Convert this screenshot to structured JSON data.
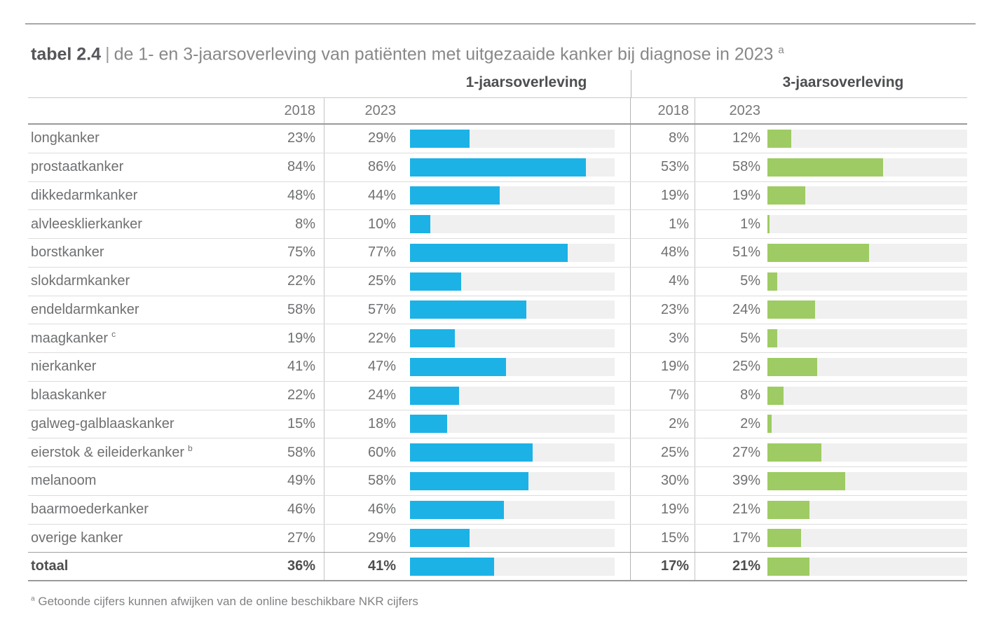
{
  "title": {
    "prefix": "tabel 2.4",
    "separator": "|",
    "text": "de 1- en 3-jaarsoverleving van patiënten met uitgezaaide kanker bij diagnose in 2023",
    "superscript": "a"
  },
  "sections": {
    "one_year": "1-jaarsoverleving",
    "three_year": "3-jaarsoverleving"
  },
  "columns": {
    "one_year_2018": "2018",
    "one_year_2023": "2023",
    "three_year_2018": "2018",
    "three_year_2023": "2023"
  },
  "colors": {
    "blue": "#1cb2e6",
    "green": "#9ecb63",
    "track": "#f0f0f0"
  },
  "footnote": {
    "superscript": "a",
    "text": "Getoonde cijfers kunnen afwijken van de online beschikbare NKR cijfers"
  },
  "table": {
    "rows": [
      {
        "label": "longkanker",
        "sup": "",
        "y1_2018": "23%",
        "y1_2023": "29%",
        "bar1": 29,
        "y3_2018": "8%",
        "y3_2023": "12%",
        "bar2": 12,
        "bold": false
      },
      {
        "label": "prostaatkanker",
        "sup": "",
        "y1_2018": "84%",
        "y1_2023": "86%",
        "bar1": 86,
        "y3_2018": "53%",
        "y3_2023": "58%",
        "bar2": 58,
        "bold": false
      },
      {
        "label": "dikkedarmkanker",
        "sup": "",
        "y1_2018": "48%",
        "y1_2023": "44%",
        "bar1": 44,
        "y3_2018": "19%",
        "y3_2023": "19%",
        "bar2": 19,
        "bold": false
      },
      {
        "label": "alvleesklierkanker",
        "sup": "",
        "y1_2018": "8%",
        "y1_2023": "10%",
        "bar1": 10,
        "y3_2018": "1%",
        "y3_2023": "1%",
        "bar2": 1,
        "bold": false
      },
      {
        "label": "borstkanker",
        "sup": "",
        "y1_2018": "75%",
        "y1_2023": "77%",
        "bar1": 77,
        "y3_2018": "48%",
        "y3_2023": "51%",
        "bar2": 51,
        "bold": false
      },
      {
        "label": "slokdarmkanker",
        "sup": "",
        "y1_2018": "22%",
        "y1_2023": "25%",
        "bar1": 25,
        "y3_2018": "4%",
        "y3_2023": "5%",
        "bar2": 5,
        "bold": false
      },
      {
        "label": "endeldarmkanker",
        "sup": "",
        "y1_2018": "58%",
        "y1_2023": "57%",
        "bar1": 57,
        "y3_2018": "23%",
        "y3_2023": "24%",
        "bar2": 24,
        "bold": false
      },
      {
        "label": "maagkanker",
        "sup": "c",
        "y1_2018": "19%",
        "y1_2023": "22%",
        "bar1": 22,
        "y3_2018": "3%",
        "y3_2023": "5%",
        "bar2": 5,
        "bold": false
      },
      {
        "label": "nierkanker",
        "sup": "",
        "y1_2018": "41%",
        "y1_2023": "47%",
        "bar1": 47,
        "y3_2018": "19%",
        "y3_2023": "25%",
        "bar2": 25,
        "bold": false
      },
      {
        "label": "blaaskanker",
        "sup": "",
        "y1_2018": "22%",
        "y1_2023": "24%",
        "bar1": 24,
        "y3_2018": "7%",
        "y3_2023": "8%",
        "bar2": 8,
        "bold": false
      },
      {
        "label": "galweg-galblaaskanker",
        "sup": "",
        "y1_2018": "15%",
        "y1_2023": "18%",
        "bar1": 18,
        "y3_2018": "2%",
        "y3_2023": "2%",
        "bar2": 2,
        "bold": false
      },
      {
        "label": "eierstok & eileiderkanker",
        "sup": "b",
        "y1_2018": "58%",
        "y1_2023": "60%",
        "bar1": 60,
        "y3_2018": "25%",
        "y3_2023": "27%",
        "bar2": 27,
        "bold": false
      },
      {
        "label": "melanoom",
        "sup": "",
        "y1_2018": "49%",
        "y1_2023": "58%",
        "bar1": 58,
        "y3_2018": "30%",
        "y3_2023": "39%",
        "bar2": 39,
        "bold": false
      },
      {
        "label": "baarmoederkanker",
        "sup": "",
        "y1_2018": "46%",
        "y1_2023": "46%",
        "bar1": 46,
        "y3_2018": "19%",
        "y3_2023": "21%",
        "bar2": 21,
        "bold": false
      },
      {
        "label": "overige kanker",
        "sup": "",
        "y1_2018": "27%",
        "y1_2023": "29%",
        "bar1": 29,
        "y3_2018": "15%",
        "y3_2023": "17%",
        "bar2": 17,
        "bold": false
      },
      {
        "label": "totaal",
        "sup": "",
        "y1_2018": "36%",
        "y1_2023": "41%",
        "bar1": 41,
        "y3_2018": "17%",
        "y3_2023": "21%",
        "bar2": 21,
        "bold": true
      }
    ]
  },
  "chart_data": {
    "type": "bar",
    "title": "tabel 2.4 | de 1- en 3-jaarsoverleving van patiënten met uitgezaaide kanker bij diagnose in 2023 a",
    "orientation": "horizontal",
    "groups": [
      "1-jaarsoverleving",
      "3-jaarsoverleving"
    ],
    "categories": [
      "longkanker",
      "prostaatkanker",
      "dikkedarmkanker",
      "alvleesklierkanker",
      "borstkanker",
      "slokdarmkanker",
      "endeldarmkanker",
      "maagkanker c",
      "nierkanker",
      "blaaskanker",
      "galweg-galblaaskanker",
      "eierstok & eileiderkanker b",
      "melanoom",
      "baarmoederkanker",
      "overige kanker",
      "totaal"
    ],
    "series": [
      {
        "name": "1-jaarsoverleving 2018",
        "unit": "%",
        "values": [
          23,
          84,
          48,
          8,
          75,
          22,
          58,
          19,
          41,
          22,
          15,
          58,
          49,
          46,
          27,
          36
        ]
      },
      {
        "name": "1-jaarsoverleving 2023",
        "unit": "%",
        "color": "#1cb2e6",
        "shown_as_bar": true,
        "values": [
          29,
          86,
          44,
          10,
          77,
          25,
          57,
          22,
          47,
          24,
          18,
          60,
          58,
          46,
          29,
          41
        ]
      },
      {
        "name": "3-jaarsoverleving 2018",
        "unit": "%",
        "values": [
          8,
          53,
          19,
          1,
          48,
          4,
          23,
          3,
          19,
          7,
          2,
          25,
          30,
          19,
          15,
          17
        ]
      },
      {
        "name": "3-jaarsoverleving 2023",
        "unit": "%",
        "color": "#9ecb63",
        "shown_as_bar": true,
        "values": [
          12,
          58,
          19,
          1,
          51,
          5,
          24,
          5,
          25,
          8,
          2,
          27,
          39,
          21,
          17,
          21
        ]
      }
    ],
    "xlim": [
      0,
      100
    ],
    "grid": false,
    "legend": false,
    "footnote": "a Getoonde cijfers kunnen afwijken van de online beschikbare NKR cijfers"
  }
}
